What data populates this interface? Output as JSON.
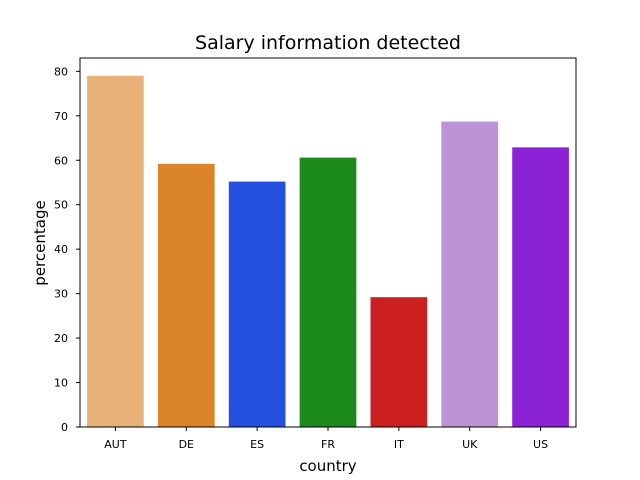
{
  "chart_data": {
    "type": "bar",
    "title": "Salary information detected",
    "xlabel": "country",
    "ylabel": "percentage",
    "categories": [
      "AUT",
      "DE",
      "ES",
      "FR",
      "IT",
      "UK",
      "US"
    ],
    "values": [
      79.0,
      59.2,
      55.2,
      60.6,
      29.2,
      68.7,
      62.9
    ],
    "colors": [
      "#e8b27a",
      "#dc8428",
      "#2450e0",
      "#1c8a1c",
      "#cc2020",
      "#bc94d6",
      "#8b22d6"
    ],
    "ylim": [
      0,
      83
    ],
    "yticks": [
      "0",
      "10",
      "20",
      "30",
      "40",
      "50",
      "60",
      "70",
      "80"
    ],
    "grid": false,
    "legend": "none"
  }
}
